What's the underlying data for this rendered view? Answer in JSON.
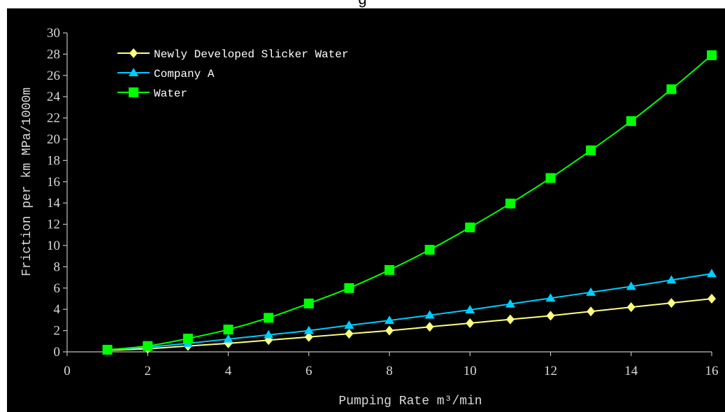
{
  "page": {
    "title_fragment": "g"
  },
  "chart_data": {
    "type": "line",
    "title": "",
    "xlabel": "Pumping Rate m³/min",
    "ylabel": "Friction per km  MPa/1000m",
    "xlim": [
      0,
      16
    ],
    "ylim": [
      0,
      30
    ],
    "x_ticks": [
      "0",
      "2",
      "4",
      "6",
      "8",
      "10",
      "12",
      "14",
      "16"
    ],
    "y_ticks": [
      "0",
      "2",
      "4",
      "6",
      "8",
      "10",
      "12",
      "14",
      "16",
      "18",
      "20",
      "22",
      "24",
      "26",
      "28",
      "30"
    ],
    "grid": false,
    "legend_position": "top-left",
    "x": [
      1,
      2,
      3,
      4,
      5,
      6,
      7,
      8,
      9,
      10,
      11,
      12,
      13,
      14,
      15,
      16
    ],
    "series": [
      {
        "name": "Newly Developed Slicker Water",
        "color": "#ffff80",
        "marker": "diamond",
        "values": [
          0.15,
          0.3,
          0.55,
          0.8,
          1.1,
          1.4,
          1.7,
          2.0,
          2.35,
          2.7,
          3.05,
          3.4,
          3.8,
          4.2,
          4.6,
          5.0
        ]
      },
      {
        "name": "Company A",
        "color": "#00ccff",
        "marker": "triangle",
        "values": [
          0.2,
          0.45,
          0.8,
          1.2,
          1.6,
          2.0,
          2.5,
          2.95,
          3.45,
          3.95,
          4.5,
          5.05,
          5.6,
          6.15,
          6.75,
          7.35
        ]
      },
      {
        "name": "Water",
        "color": "#00ff00",
        "marker": "square",
        "values": [
          0.2,
          0.55,
          1.25,
          2.1,
          3.2,
          4.55,
          6.0,
          7.7,
          9.6,
          11.7,
          13.95,
          16.35,
          18.95,
          21.7,
          24.7,
          27.9
        ]
      }
    ]
  }
}
